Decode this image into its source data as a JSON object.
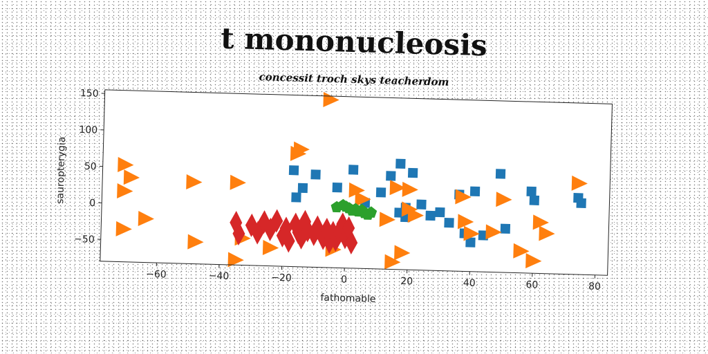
{
  "chart_data": {
    "type": "scatter",
    "title": "t mononucleosis",
    "subtitle": "concessit troch skys teacherdom",
    "xlabel": "fathomable",
    "ylabel": "sauropterygia",
    "xlim": [
      -78,
      84
    ],
    "ylim": [
      -80,
      155
    ],
    "xticks": [
      -60,
      -40,
      -20,
      0,
      20,
      40,
      60,
      80
    ],
    "yticks": [
      -50,
      0,
      50,
      100,
      150
    ],
    "grid": false,
    "series": [
      {
        "marker": "square",
        "color": "#1f77b4",
        "points": [
          [
            -17,
            52
          ],
          [
            -10,
            47
          ],
          [
            -14,
            28
          ],
          [
            -16,
            15
          ],
          [
            -3,
            30
          ],
          [
            2,
            55
          ],
          [
            6,
            10
          ],
          [
            11,
            25
          ],
          [
            14,
            48
          ],
          [
            17,
            65
          ],
          [
            21,
            53
          ],
          [
            19,
            5
          ],
          [
            17,
            -2
          ],
          [
            19,
            -8
          ],
          [
            24,
            10
          ],
          [
            27,
            -5
          ],
          [
            30,
            0
          ],
          [
            33,
            -14
          ],
          [
            36,
            25
          ],
          [
            41,
            30
          ],
          [
            38,
            -28
          ],
          [
            40,
            -40
          ],
          [
            44,
            -30
          ],
          [
            49,
            55
          ],
          [
            51,
            -20
          ],
          [
            59,
            32
          ],
          [
            60,
            20
          ],
          [
            74,
            25
          ],
          [
            75,
            18
          ]
        ]
      },
      {
        "marker": "triangle-right",
        "color": "#ff7f0e",
        "points": [
          [
            -71,
            53
          ],
          [
            -69,
            36
          ],
          [
            -71,
            17
          ],
          [
            -71,
            -35
          ],
          [
            -64,
            -20
          ],
          [
            -49,
            32
          ],
          [
            -48,
            -50
          ],
          [
            -35,
            33
          ],
          [
            -35,
            -73
          ],
          [
            -33,
            -43
          ],
          [
            -24,
            -55
          ],
          [
            -16,
            75
          ],
          [
            -15,
            81
          ],
          [
            -6,
            150
          ],
          [
            -4,
            -55
          ],
          [
            3,
            27
          ],
          [
            5,
            15
          ],
          [
            13,
            -12
          ],
          [
            15,
            -70
          ],
          [
            16,
            32
          ],
          [
            18,
            -57
          ],
          [
            20,
            30
          ],
          [
            20,
            3
          ],
          [
            22,
            -5
          ],
          [
            37,
            22
          ],
          [
            38,
            -12
          ],
          [
            40,
            -28
          ],
          [
            47,
            -25
          ],
          [
            50,
            20
          ],
          [
            56,
            -50
          ],
          [
            60,
            -63
          ],
          [
            62,
            -10
          ],
          [
            64,
            -25
          ],
          [
            74,
            45
          ]
        ]
      },
      {
        "marker": "pentagon",
        "color": "#2ca02c",
        "points": [
          [
            -3,
            3
          ],
          [
            -1,
            6
          ],
          [
            0,
            4
          ],
          [
            1,
            2
          ],
          [
            2,
            -1
          ],
          [
            3,
            1
          ],
          [
            4,
            -2
          ],
          [
            5,
            0
          ],
          [
            6,
            -4
          ],
          [
            7,
            -6
          ],
          [
            8,
            -3
          ]
        ]
      },
      {
        "marker": "thin-diamond",
        "color": "#d62728",
        "points": [
          [
            -35,
            -22
          ],
          [
            -34,
            -37
          ],
          [
            -30,
            -25
          ],
          [
            -28,
            -35
          ],
          [
            -26,
            -20
          ],
          [
            -24,
            -30
          ],
          [
            -22,
            -18
          ],
          [
            -20,
            -38
          ],
          [
            -19,
            -28
          ],
          [
            -18,
            -45
          ],
          [
            -16,
            -22
          ],
          [
            -15,
            -33
          ],
          [
            -14,
            -40
          ],
          [
            -13,
            -18
          ],
          [
            -12,
            -30
          ],
          [
            -10,
            -35
          ],
          [
            -9,
            -25
          ],
          [
            -7,
            -40
          ],
          [
            -6,
            -28
          ],
          [
            -5,
            -45
          ],
          [
            -4,
            -32
          ],
          [
            -3,
            -42
          ],
          [
            -2,
            -30
          ],
          [
            -1,
            -20
          ],
          [
            0,
            -38
          ],
          [
            1,
            -25
          ],
          [
            2,
            -45
          ]
        ]
      }
    ]
  }
}
